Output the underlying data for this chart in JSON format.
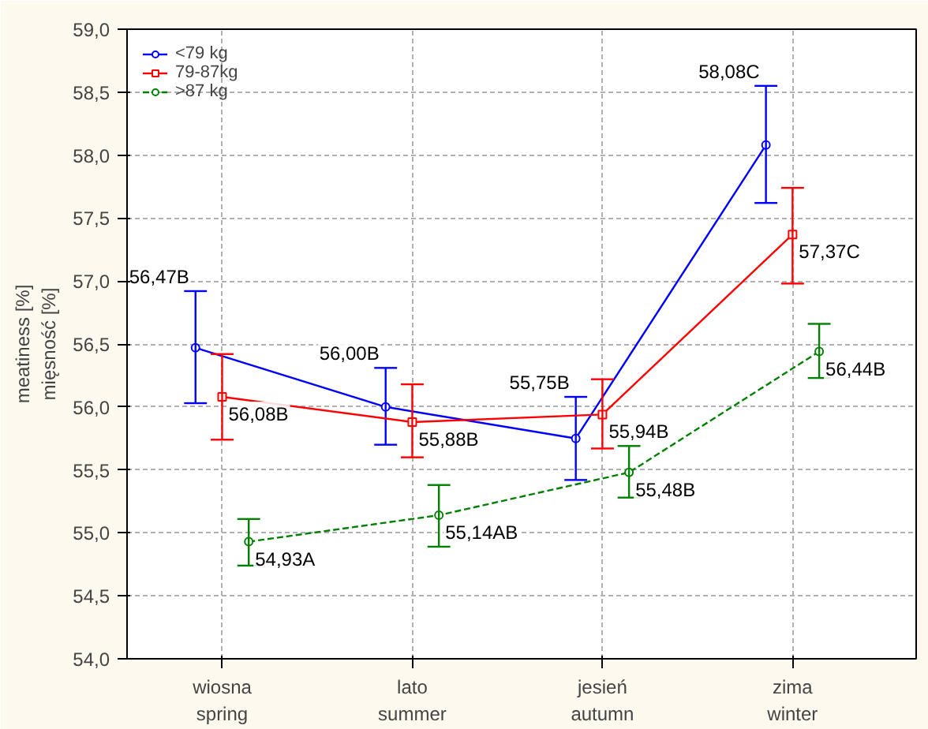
{
  "chart_data": {
    "type": "line",
    "ylabel": "meatiness [%]\nmięsność [%]",
    "categories": [
      "wiosna\nspring",
      "lato\nsummer",
      "jesień\nautumn",
      "zima\nwinter"
    ],
    "ylim": [
      54,
      59
    ],
    "yticks": [
      {
        "value": 54,
        "label": "54,0"
      },
      {
        "value": 54.5,
        "label": "54,5"
      },
      {
        "value": 55,
        "label": "55,0"
      },
      {
        "value": 55.5,
        "label": "55,5"
      },
      {
        "value": 56,
        "label": "56,0"
      },
      {
        "value": 56.5,
        "label": "56,5"
      },
      {
        "value": 57,
        "label": "57,0"
      },
      {
        "value": 57.5,
        "label": "57,5"
      },
      {
        "value": 58,
        "label": "58,0"
      },
      {
        "value": 58.5,
        "label": "58,5"
      },
      {
        "value": 59,
        "label": "59,0"
      }
    ],
    "grid": true,
    "legend": "top left",
    "series": [
      {
        "name": "<79 kg",
        "color": "#0000ff",
        "marker": "circle",
        "line_style": "solid",
        "values": [
          56.47,
          56.0,
          55.75,
          58.08
        ],
        "errors": [
          [
            56.03,
            56.92
          ],
          [
            55.7,
            56.31
          ],
          [
            55.42,
            56.08
          ],
          [
            57.62,
            58.55
          ]
        ],
        "value_labels": [
          "56,47B",
          "56,00B",
          "55,75B",
          "58,08C"
        ]
      },
      {
        "name": "79-87kg",
        "color": "#ff0000",
        "marker": "square",
        "line_style": "solid",
        "values": [
          56.08,
          55.88,
          55.94,
          57.37
        ],
        "errors": [
          [
            55.74,
            56.42
          ],
          [
            55.6,
            56.18
          ],
          [
            55.67,
            56.22
          ],
          [
            56.98,
            57.74
          ]
        ],
        "value_labels": [
          "56,08B",
          "55,88B",
          "55,94B",
          "57,37C"
        ]
      },
      {
        "name": ">87 kg",
        "color": "#008000",
        "marker": "circle",
        "line_style": "dashed",
        "values": [
          54.93,
          55.14,
          55.48,
          56.44
        ],
        "errors": [
          [
            54.74,
            55.11
          ],
          [
            54.89,
            55.38
          ],
          [
            55.28,
            55.69
          ],
          [
            56.23,
            56.66
          ]
        ],
        "value_labels": [
          "54,93A",
          "55,14AB",
          "55,48B",
          "56,44B"
        ]
      }
    ]
  }
}
